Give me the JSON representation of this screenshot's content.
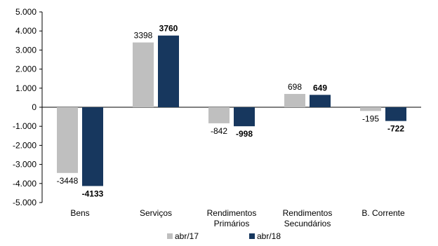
{
  "chart_data": {
    "type": "bar",
    "categories": [
      [
        "Bens"
      ],
      [
        "Serviços"
      ],
      [
        "Rendimentos",
        "Primários"
      ],
      [
        "Rendimentos",
        "Secundários"
      ],
      [
        "B. Corrente"
      ]
    ],
    "series": [
      {
        "name": "abr/17",
        "values": [
          -3448,
          3398,
          -842,
          698,
          -195
        ],
        "color": "#bfbfbf",
        "label_bold": false
      },
      {
        "name": "abr/18",
        "values": [
          -4133,
          3760,
          -998,
          649,
          -722
        ],
        "color": "#17375e",
        "label_bold": true
      }
    ],
    "ylim": [
      -5000,
      5000
    ],
    "ytick_step": 1000,
    "ytick_labels": [
      "-5.000",
      "-4.000",
      "-3.000",
      "-2.000",
      "-1.000",
      "0",
      "1.000",
      "2.000",
      "3.000",
      "4.000",
      "5.000"
    ],
    "legend_position": "bottom",
    "grid": false
  }
}
